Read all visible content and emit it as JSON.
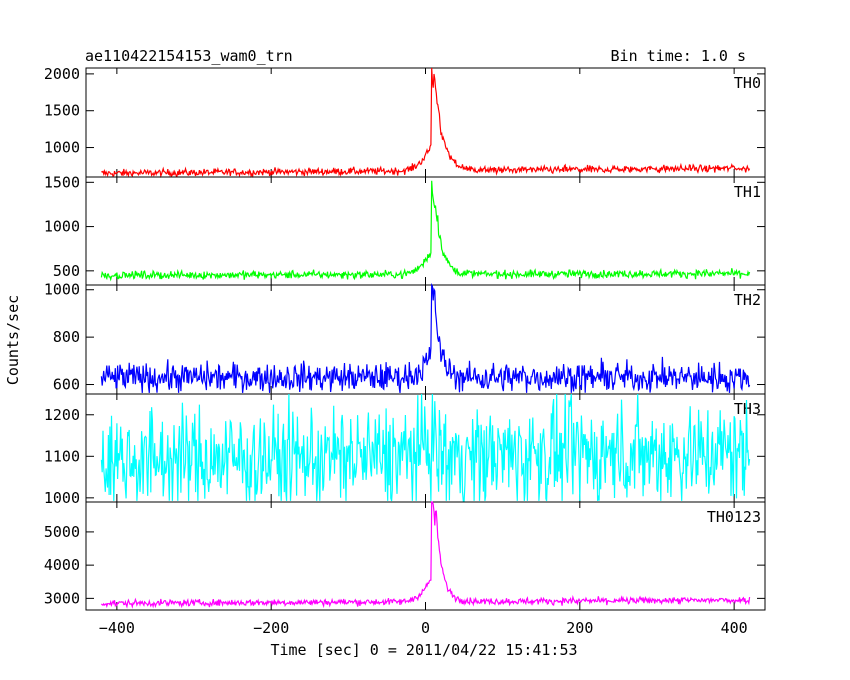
{
  "header": {
    "title": "ae110422154153_wam0_trn",
    "bin_time": "Bin time: 1.0 s"
  },
  "axes": {
    "xlabel": "Time [sec] 0 = 2011/04/22 15:41:53",
    "ylabel": "Counts/sec",
    "xlim": [
      -440,
      440
    ],
    "xticks": [
      -400,
      -200,
      0,
      200,
      400
    ],
    "xtick_labels": [
      "−400",
      "−200",
      "0",
      "200",
      "400"
    ]
  },
  "chart_data": [
    {
      "type": "line",
      "label": "TH0",
      "color": "#ff0000",
      "ylim": [
        600,
        2080
      ],
      "yticks": [
        1000,
        1500,
        2000
      ],
      "ytick_labels": [
        "1000",
        "1500",
        "2000"
      ],
      "x_range": [
        -420,
        420
      ],
      "baseline_start": 650,
      "baseline_end": 720,
      "noise": 45,
      "noise_pre_peak": 0,
      "pre_peak": [
        -40,
        650,
        700
      ],
      "peak": 2100,
      "peak_time": 8,
      "decay": 12,
      "shoulder": 600,
      "shoulder_time": 14
    },
    {
      "type": "line",
      "label": "TH1",
      "color": "#00ff00",
      "ylim": [
        340,
        1560
      ],
      "yticks": [
        500,
        1000,
        1500
      ],
      "ytick_labels": [
        "500",
        "1000",
        "1500"
      ],
      "x_range": [
        -420,
        420
      ],
      "baseline_start": 450,
      "baseline_end": 470,
      "noise": 40,
      "noise_pre_peak": 0,
      "pre_peak": [
        -40,
        450,
        460
      ],
      "peak": 1560,
      "peak_time": 8,
      "decay": 10,
      "shoulder": 350,
      "shoulder_time": 14
    },
    {
      "type": "line",
      "label": "TH2",
      "color": "#0000ff",
      "ylim": [
        560,
        1020
      ],
      "yticks": [
        600,
        800,
        1000
      ],
      "ytick_labels": [
        "600",
        "800",
        "1000"
      ],
      "x_range": [
        -420,
        420
      ],
      "baseline_start": 630,
      "baseline_end": 630,
      "noise": 55,
      "noise_pre_peak": 0,
      "pre_peak": [
        -40,
        630,
        630
      ],
      "peak": 1020,
      "peak_time": 8,
      "decay": 8,
      "shoulder": 200,
      "shoulder_time": 12
    },
    {
      "type": "line",
      "label": "TH3",
      "color": "#00ffff",
      "ylim": [
        990,
        1250
      ],
      "yticks": [
        1000,
        1100,
        1200
      ],
      "ytick_labels": [
        "1000",
        "1100",
        "1200"
      ],
      "x_range": [
        -420,
        420
      ],
      "baseline_start": 1090,
      "baseline_end": 1110,
      "noise": 110,
      "noise_pre_peak": 0,
      "pre_peak": [
        -40,
        1090,
        1090
      ],
      "peak": 1220,
      "peak_time": 8,
      "decay": 5,
      "shoulder": 0,
      "shoulder_time": 0
    },
    {
      "type": "line",
      "label": "TH0123",
      "color": "#ff00ff",
      "ylim": [
        2650,
        5900
      ],
      "yticks": [
        3000,
        4000,
        5000
      ],
      "ytick_labels": [
        "3000",
        "4000",
        "5000"
      ],
      "x_range": [
        -420,
        420
      ],
      "baseline_start": 2850,
      "baseline_end": 2950,
      "noise": 90,
      "noise_pre_peak": 0,
      "pre_peak": [
        -40,
        2850,
        2900
      ],
      "peak": 5800,
      "peak_time": 8,
      "decay": 10,
      "shoulder": 2000,
      "shoulder_time": 14
    }
  ]
}
